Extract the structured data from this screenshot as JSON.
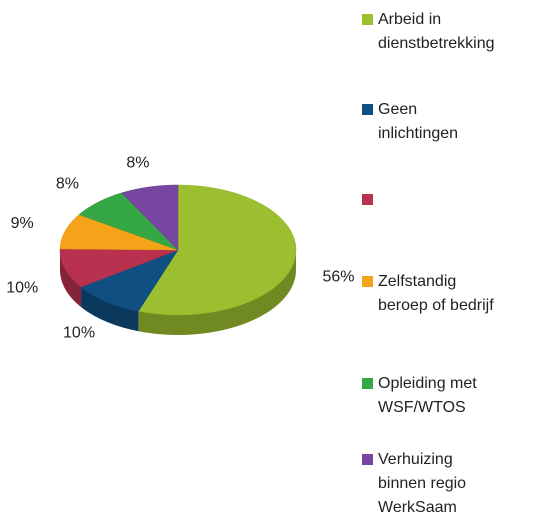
{
  "chart_data": {
    "type": "pie",
    "categories": [
      "Arbeid in\ndienstbetrekking",
      "Geen\ninlichtingen",
      null,
      "Zelfstandig\nberoep of bedrijf",
      "Opleiding met\nWSF/WTOS",
      "Verhuizing\nbinnen regio\nWerkSaam"
    ],
    "values": [
      56,
      10,
      10,
      9,
      8,
      8
    ],
    "value_labels": [
      "56%",
      "10%",
      "10%",
      "9%",
      "8%",
      "8%"
    ],
    "colors": [
      "#9bbf2e",
      "#0f4f82",
      "#b8314f",
      "#f5a419",
      "#35a845",
      "#7646a0"
    ],
    "legend": "right"
  }
}
